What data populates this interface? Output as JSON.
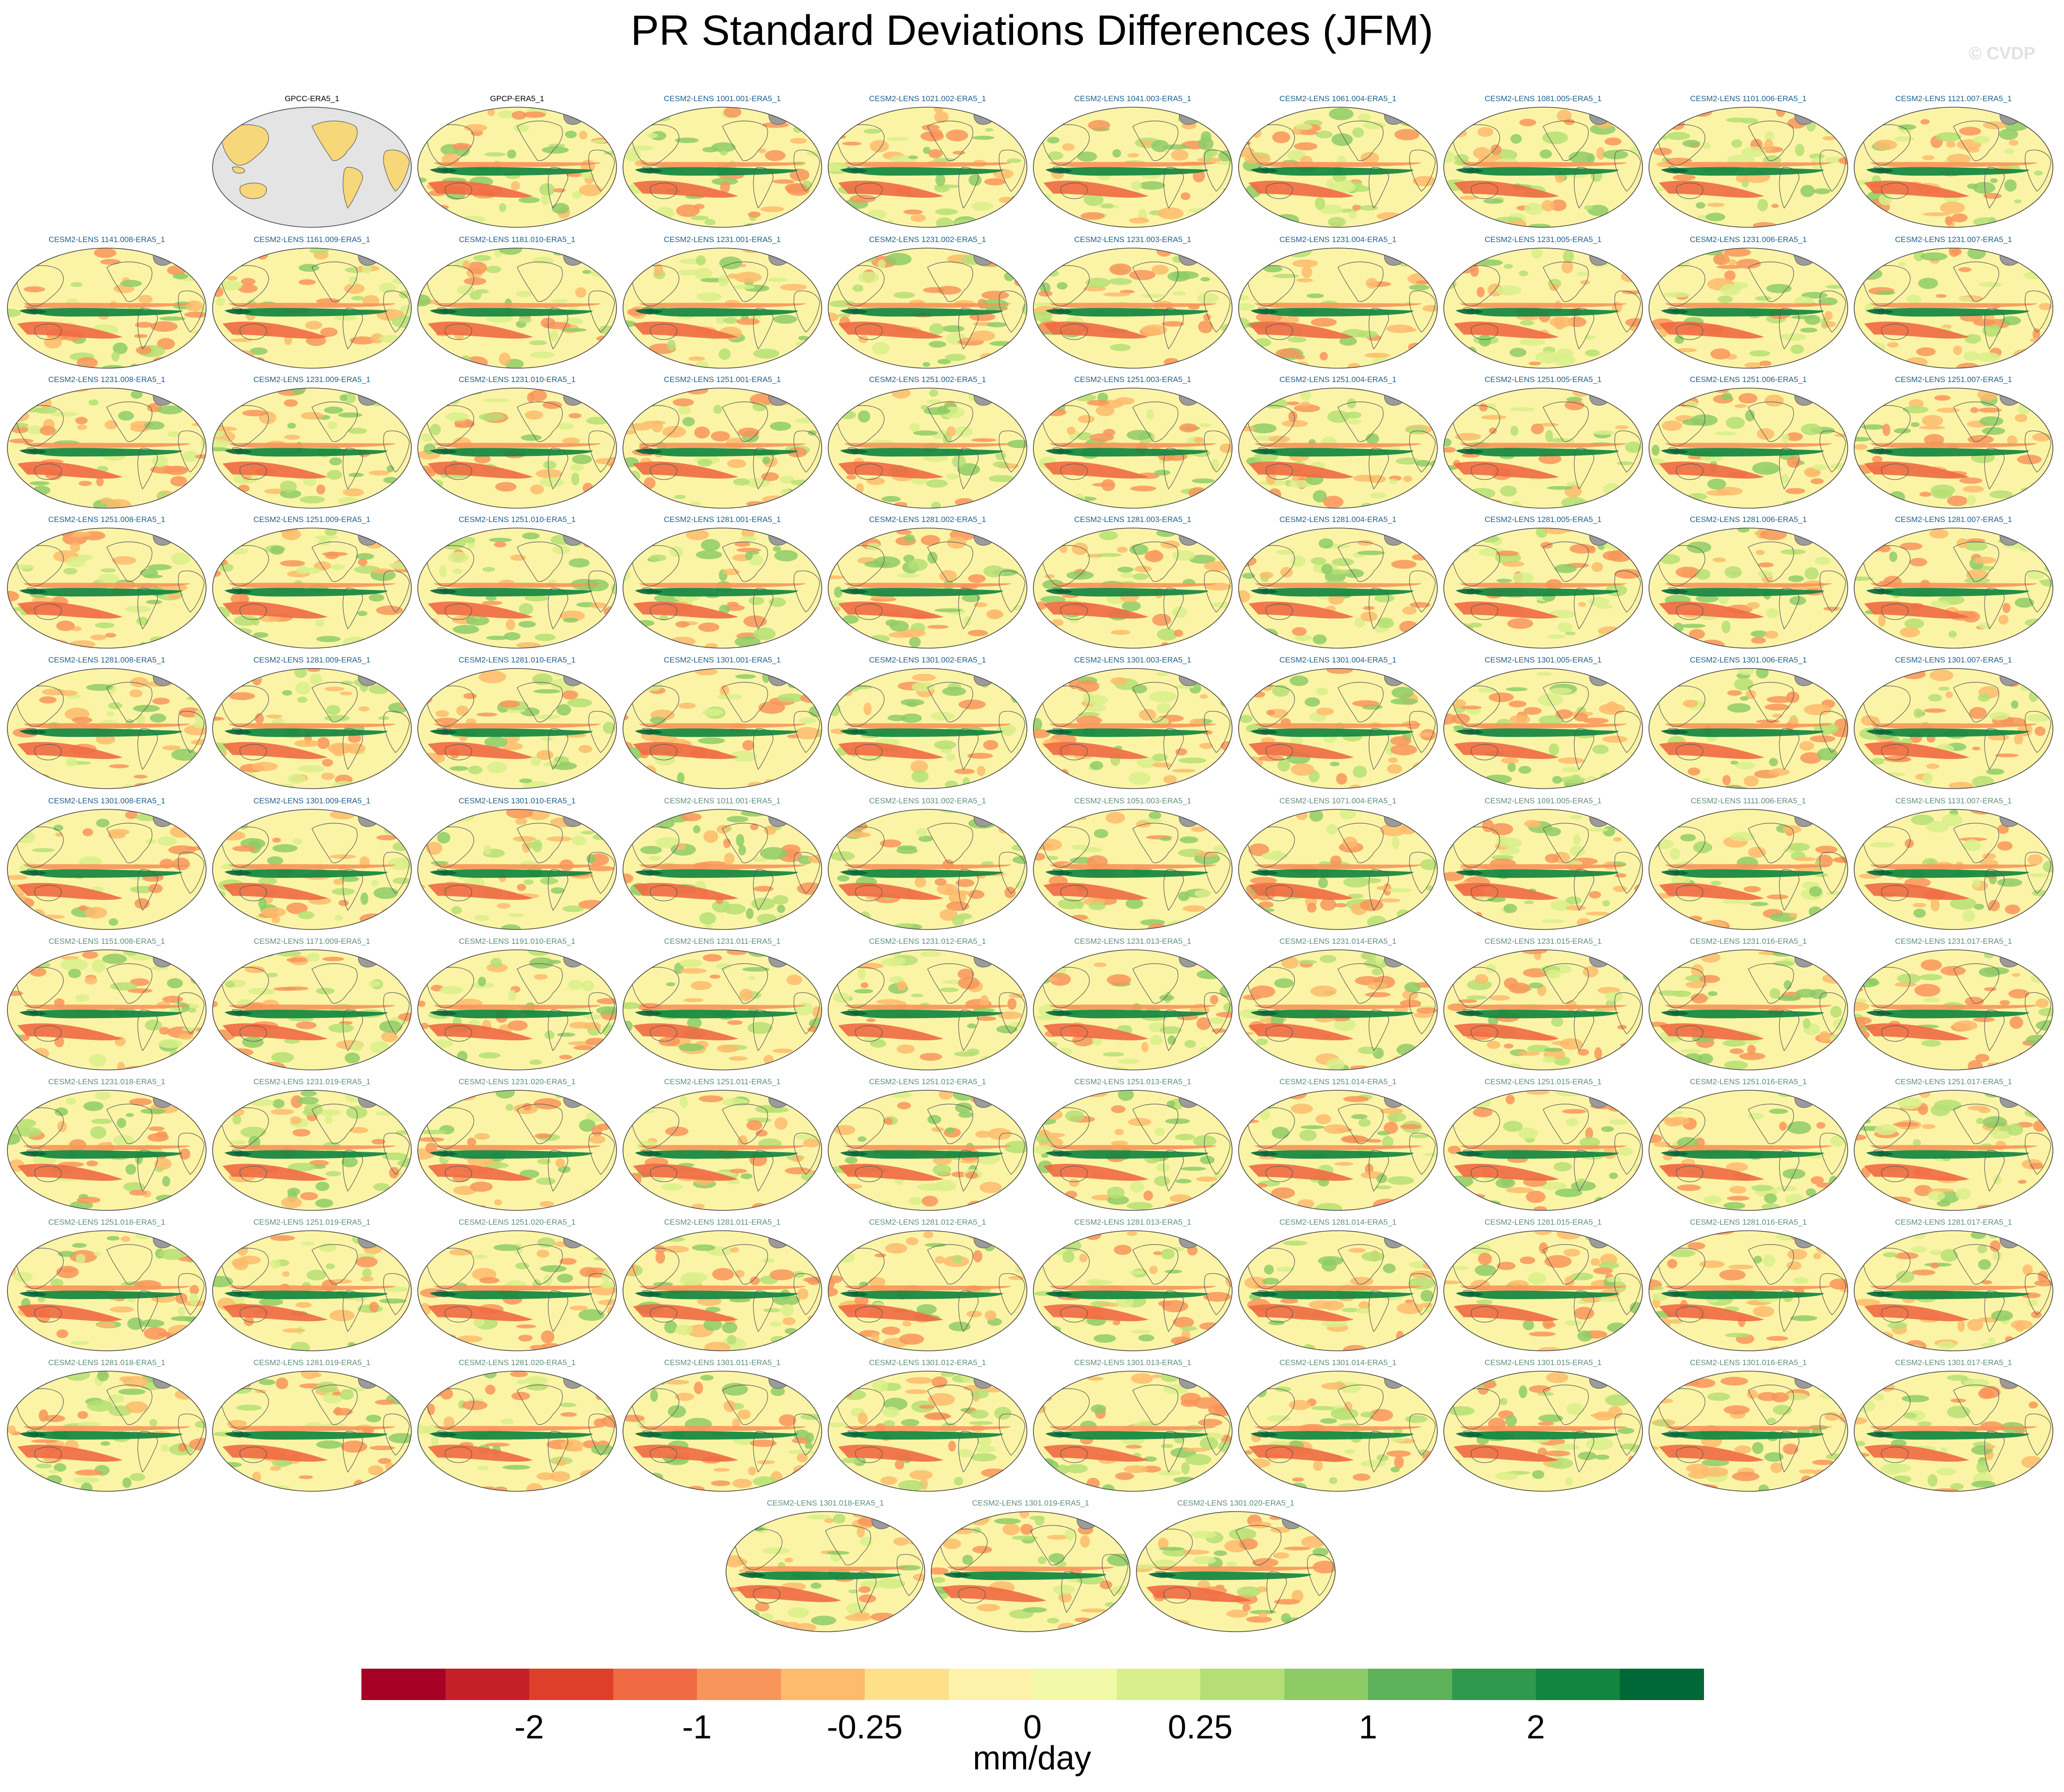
{
  "title": "PR Standard Deviations Differences (JFM)",
  "watermark": "© CVDP",
  "panels": {
    "obs": [
      {
        "label": "GPCC-ERA5_1",
        "kind": "obs-missing"
      },
      {
        "label": "GPCP-ERA5_1",
        "kind": "obs"
      }
    ],
    "ensemble": [
      "CESM2-LENS 1001.001-ERA5_1",
      "CESM2-LENS 1021.002-ERA5_1",
      "CESM2-LENS 1041.003-ERA5_1",
      "CESM2-LENS 1061.004-ERA5_1",
      "CESM2-LENS 1081.005-ERA5_1",
      "CESM2-LENS 1101.006-ERA5_1",
      "CESM2-LENS 1121.007-ERA5_1",
      "CESM2-LENS 1141.008-ERA5_1",
      "CESM2-LENS 1161.009-ERA5_1",
      "CESM2-LENS 1181.010-ERA5_1",
      "CESM2-LENS 1231.001-ERA5_1",
      "CESM2-LENS 1231.002-ERA5_1",
      "CESM2-LENS 1231.003-ERA5_1",
      "CESM2-LENS 1231.004-ERA5_1",
      "CESM2-LENS 1231.005-ERA5_1",
      "CESM2-LENS 1231.006-ERA5_1",
      "CESM2-LENS 1231.007-ERA5_1",
      "CESM2-LENS 1231.008-ERA5_1",
      "CESM2-LENS 1231.009-ERA5_1",
      "CESM2-LENS 1231.010-ERA5_1",
      "CESM2-LENS 1251.001-ERA5_1",
      "CESM2-LENS 1251.002-ERA5_1",
      "CESM2-LENS 1251.003-ERA5_1",
      "CESM2-LENS 1251.004-ERA5_1",
      "CESM2-LENS 1251.005-ERA5_1",
      "CESM2-LENS 1251.006-ERA5_1",
      "CESM2-LENS 1251.007-ERA5_1",
      "CESM2-LENS 1251.008-ERA5_1",
      "CESM2-LENS 1251.009-ERA5_1",
      "CESM2-LENS 1251.010-ERA5_1",
      "CESM2-LENS 1281.001-ERA5_1",
      "CESM2-LENS 1281.002-ERA5_1",
      "CESM2-LENS 1281.003-ERA5_1",
      "CESM2-LENS 1281.004-ERA5_1",
      "CESM2-LENS 1281.005-ERA5_1",
      "CESM2-LENS 1281.006-ERA5_1",
      "CESM2-LENS 1281.007-ERA5_1",
      "CESM2-LENS 1281.008-ERA5_1",
      "CESM2-LENS 1281.009-ERA5_1",
      "CESM2-LENS 1281.010-ERA5_1",
      "CESM2-LENS 1301.001-ERA5_1",
      "CESM2-LENS 1301.002-ERA5_1",
      "CESM2-LENS 1301.003-ERA5_1",
      "CESM2-LENS 1301.004-ERA5_1",
      "CESM2-LENS 1301.005-ERA5_1",
      "CESM2-LENS 1301.006-ERA5_1",
      "CESM2-LENS 1301.007-ERA5_1",
      "CESM2-LENS 1301.008-ERA5_1",
      "CESM2-LENS 1301.009-ERA5_1",
      "CESM2-LENS 1301.010-ERA5_1",
      "CESM2-LENS 1011.001-ERA5_1",
      "CESM2-LENS 1031.002-ERA5_1",
      "CESM2-LENS 1051.003-ERA5_1",
      "CESM2-LENS 1071.004-ERA5_1",
      "CESM2-LENS 1091.005-ERA5_1",
      "CESM2-LENS 1111.006-ERA5_1",
      "CESM2-LENS 1131.007-ERA5_1",
      "CESM2-LENS 1151.008-ERA5_1",
      "CESM2-LENS 1171.009-ERA5_1",
      "CESM2-LENS 1191.010-ERA5_1",
      "CESM2-LENS 1231.011-ERA5_1",
      "CESM2-LENS 1231.012-ERA5_1",
      "CESM2-LENS 1231.013-ERA5_1",
      "CESM2-LENS 1231.014-ERA5_1",
      "CESM2-LENS 1231.015-ERA5_1",
      "CESM2-LENS 1231.016-ERA5_1",
      "CESM2-LENS 1231.017-ERA5_1",
      "CESM2-LENS 1231.018-ERA5_1",
      "CESM2-LENS 1231.019-ERA5_1",
      "CESM2-LENS 1231.020-ERA5_1",
      "CESM2-LENS 1251.011-ERA5_1",
      "CESM2-LENS 1251.012-ERA5_1",
      "CESM2-LENS 1251.013-ERA5_1",
      "CESM2-LENS 1251.014-ERA5_1",
      "CESM2-LENS 1251.015-ERA5_1",
      "CESM2-LENS 1251.016-ERA5_1",
      "CESM2-LENS 1251.017-ERA5_1",
      "CESM2-LENS 1251.018-ERA5_1",
      "CESM2-LENS 1251.019-ERA5_1",
      "CESM2-LENS 1251.020-ERA5_1",
      "CESM2-LENS 1281.011-ERA5_1",
      "CESM2-LENS 1281.012-ERA5_1",
      "CESM2-LENS 1281.013-ERA5_1",
      "CESM2-LENS 1281.014-ERA5_1",
      "CESM2-LENS 1281.015-ERA5_1",
      "CESM2-LENS 1281.016-ERA5_1",
      "CESM2-LENS 1281.017-ERA5_1",
      "CESM2-LENS 1281.018-ERA5_1",
      "CESM2-LENS 1281.019-ERA5_1",
      "CESM2-LENS 1281.020-ERA5_1",
      "CESM2-LENS 1301.011-ERA5_1",
      "CESM2-LENS 1301.012-ERA5_1",
      "CESM2-LENS 1301.013-ERA5_1",
      "CESM2-LENS 1301.014-ERA5_1",
      "CESM2-LENS 1301.015-ERA5_1",
      "CESM2-LENS 1301.016-ERA5_1",
      "CESM2-LENS 1301.017-ERA5_1",
      "CESM2-LENS 1301.018-ERA5_1",
      "CESM2-LENS 1301.019-ERA5_1",
      "CESM2-LENS 1301.020-ERA5_1"
    ],
    "label_colors": {
      "obs": "#000000",
      "ensemble_primary": "#1f5f8b",
      "ensemble_secondary": "#5f8f7b"
    },
    "secondary_from_index": 50
  },
  "colorbar": {
    "colors": [
      "#a50026",
      "#c51f28",
      "#dd3f2b",
      "#f06a43",
      "#f8955a",
      "#fdbb6c",
      "#fee08b",
      "#fff2ab",
      "#f2f9a8",
      "#d9ef8b",
      "#b5df74",
      "#8ecb66",
      "#5eb35a",
      "#2f9a4d",
      "#128540",
      "#006837"
    ],
    "tick_labels": [
      "-2",
      "-1",
      "-0.25",
      "0",
      "0.25",
      "1",
      "2"
    ],
    "tick_after_box": [
      2,
      4,
      6,
      8,
      10,
      12,
      14
    ],
    "units": "mm/day"
  },
  "map_colors": {
    "background": "#fbf4a6",
    "land_mask": "#e4e4e4",
    "land_tan": "#f6d77a",
    "coast": "#5a5a5a",
    "greenland": "#9b9b9b"
  }
}
